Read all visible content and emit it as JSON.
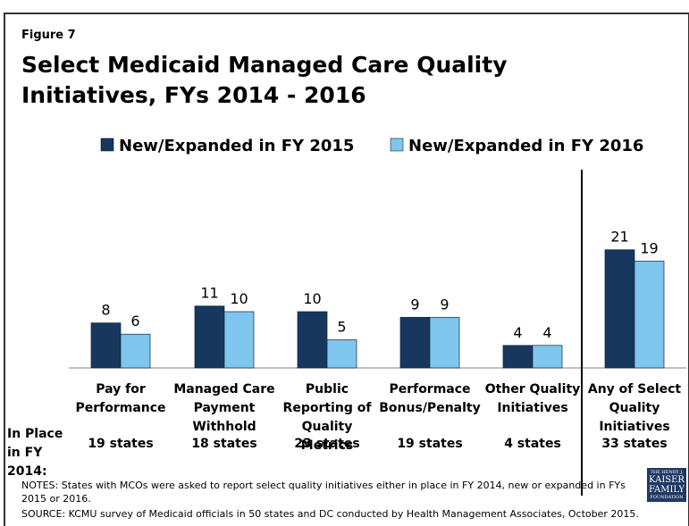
{
  "chart_data": {
    "type": "bar",
    "figure_label": "Figure 7",
    "title": "Select Medicaid Managed Care Quality Initiatives, FYs 2014 - 2016",
    "categories": [
      "Pay for Performance",
      "Managed Care Payment Withhold",
      "Public Reporting of Quality Metrics",
      "Performace Bonus/Penalty",
      "Other Quality Initiatives",
      "Any of Select Quality Initiatives"
    ],
    "series": [
      {
        "name": "New/Expanded in FY 2015",
        "color": "#17375e",
        "values": [
          8,
          11,
          10,
          9,
          4,
          21
        ]
      },
      {
        "name": "New/Expanded in FY 2016",
        "color": "#7fc6ee",
        "values": [
          6,
          10,
          5,
          9,
          4,
          19
        ]
      }
    ],
    "row_label": "In Place in FY 2014:",
    "in_place": [
      "19 states",
      "18 states",
      "23 states",
      "19 states",
      "4 states",
      "33 states"
    ],
    "notes": "NOTES: States with MCOs were asked to report select quality initiatives either in place in FY 2014, new or expanded in FYs 2015 or 2016.",
    "source": "SOURCE: KCMU survey of Medicaid officials in 50 states and DC conducted by Health Management Associates, October 2015.",
    "logo": {
      "top": "THE HENRY J.",
      "line1": "KAISER",
      "line2": "FAMILY",
      "bottom": "FOUNDATION"
    }
  }
}
